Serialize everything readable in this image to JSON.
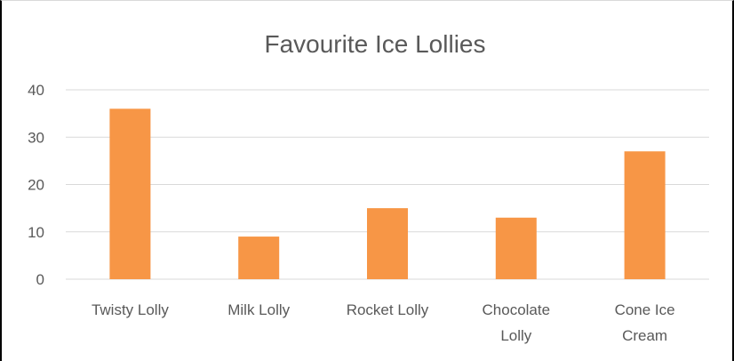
{
  "chart_data": {
    "type": "bar",
    "title": "Favourite Ice Lollies",
    "categories": [
      "Twisty Lolly",
      "Milk Lolly",
      "Rocket Lolly",
      "Chocolate Lolly",
      "Cone Ice Cream"
    ],
    "category_lines": [
      [
        "Twisty Lolly"
      ],
      [
        "Milk Lolly"
      ],
      [
        "Rocket Lolly"
      ],
      [
        "Chocolate",
        "Lolly"
      ],
      [
        "Cone Ice",
        "Cream"
      ]
    ],
    "values": [
      36,
      9,
      15,
      13,
      27
    ],
    "xlabel": "",
    "ylabel": "",
    "ylim": [
      0,
      40
    ],
    "yticks": [
      0,
      10,
      20,
      30,
      40
    ],
    "grid": true,
    "legend": "none",
    "bar_color": "#F79646",
    "grid_color": "#D9D9D9",
    "text_color": "#595959"
  }
}
